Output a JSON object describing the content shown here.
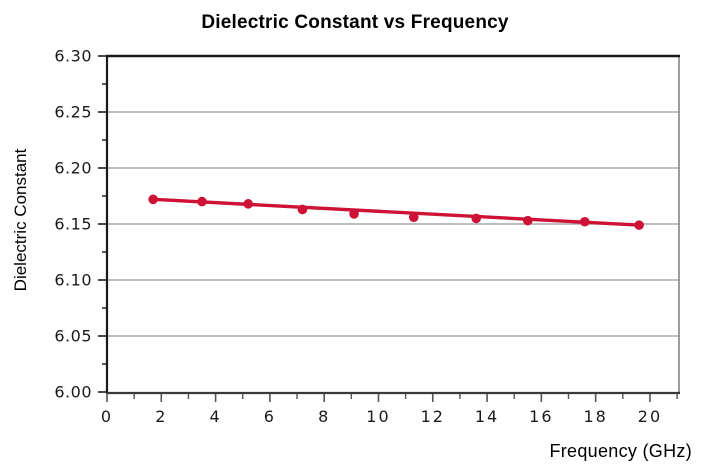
{
  "figure": {
    "title": "Dielectric Constant vs Frequency",
    "xlabel": "Frequency (GHz)",
    "ylabel": "Dielectric Constant"
  },
  "chart_data": {
    "type": "scatter",
    "title": "Dielectric Constant vs Frequency",
    "xlabel": "Frequency (GHz)",
    "ylabel": "Dielectric Constant",
    "xlim": [
      0,
      21.07
    ],
    "ylim": [
      6.0,
      6.3
    ],
    "x_major_ticks": [
      0,
      2,
      4,
      6,
      8,
      10,
      12,
      14,
      16,
      18,
      20
    ],
    "x_minor_ticks": [
      1,
      3,
      5,
      7,
      9,
      11,
      13,
      15,
      17,
      19,
      21
    ],
    "y_major_ticks": [
      6.0,
      6.05,
      6.1,
      6.15,
      6.2,
      6.25,
      6.3
    ],
    "y_minor_ticks": [
      6.025,
      6.075,
      6.125,
      6.175,
      6.225,
      6.275
    ],
    "grid": "horizontal-major-only",
    "legend": "none",
    "series": [
      {
        "name": "dielectric constant",
        "marker": "circle",
        "x": [
          1.7,
          3.5,
          5.2,
          7.2,
          9.1,
          11.3,
          13.6,
          15.5,
          17.6,
          19.6
        ],
        "y": [
          6.172,
          6.17,
          6.168,
          6.163,
          6.159,
          6.156,
          6.155,
          6.153,
          6.152,
          6.149
        ],
        "trend_line": "straight segment from first point to last point"
      }
    ],
    "colors": {
      "series": "#CE1236",
      "grid": "#999999",
      "axis": "#1a1a1a",
      "bottom_axis": "#3a3a3a",
      "right_frame": "#7d7d7d",
      "tick_text": "#1a1a1a",
      "background": "#ffffff"
    }
  }
}
